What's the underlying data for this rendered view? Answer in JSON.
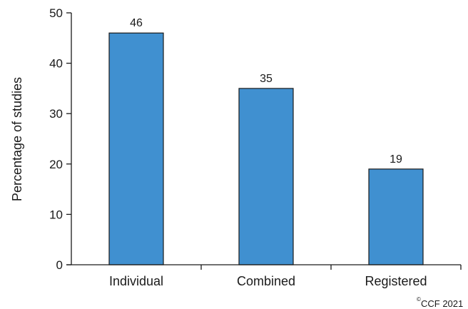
{
  "chart_data": {
    "type": "bar",
    "categories": [
      "Individual",
      "Combined",
      "Registered"
    ],
    "values": [
      46,
      35,
      19
    ],
    "data_labels": [
      "46",
      "35",
      "19"
    ],
    "title": "",
    "xlabel": "",
    "ylabel": "Percentage of studies",
    "ylim": [
      0,
      50
    ],
    "yticks": [
      0,
      10,
      20,
      30,
      40,
      50
    ],
    "grid": false,
    "legend": "none",
    "bar_color": "#4090d0",
    "bar_edge_color": "#1a1a1a"
  },
  "copyright": {
    "symbol": "©",
    "text": "CCF 2021"
  }
}
